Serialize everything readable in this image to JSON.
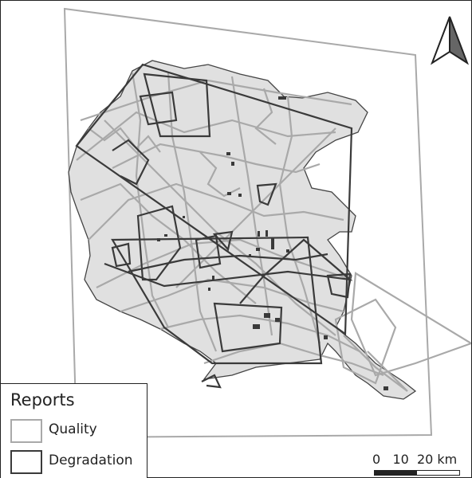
{
  "legend": {
    "title": "Reports",
    "items": [
      {
        "label": "Quality",
        "color": "#a9a9a9"
      },
      {
        "label": "Degradation",
        "color": "#3a3a3a"
      }
    ]
  },
  "scale_bar": {
    "label": "0   10  20 km",
    "ticks": [
      0,
      10,
      20
    ],
    "unit": "km"
  },
  "north_arrow": {
    "icon": "north-arrow-icon"
  },
  "region": {
    "fill": "#e0e0e0",
    "outline": "#444444"
  },
  "colors": {
    "quality": "#a9a9a9",
    "degradation": "#3a3a3a"
  }
}
